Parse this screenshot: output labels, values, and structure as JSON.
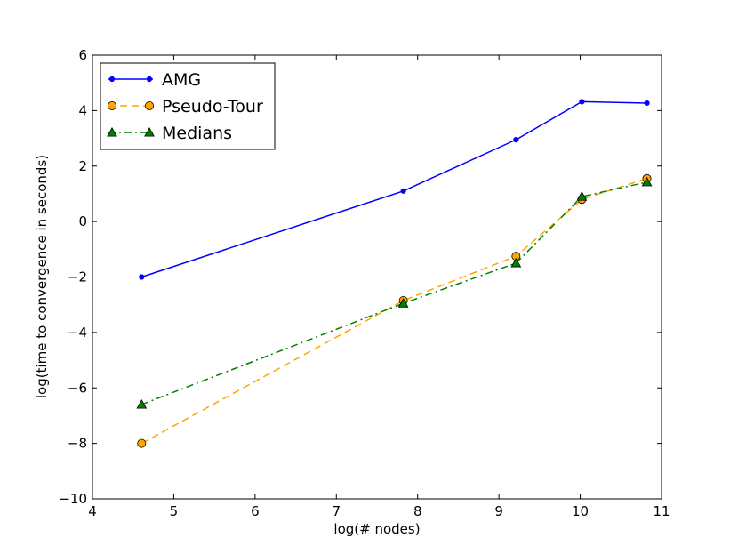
{
  "chart_data": {
    "type": "line",
    "title": "",
    "xlabel": "log(# nodes)",
    "ylabel": "log(time to convergence in seconds)",
    "xlim": [
      4,
      11
    ],
    "ylim": [
      -10,
      6
    ],
    "xticks": [
      4,
      5,
      6,
      7,
      8,
      9,
      10,
      11
    ],
    "yticks": [
      -10,
      -8,
      -6,
      -4,
      -2,
      0,
      2,
      4,
      6
    ],
    "xtick_labels": [
      "4",
      "5",
      "6",
      "7",
      "8",
      "9",
      "10",
      "11"
    ],
    "ytick_labels": [
      "−10",
      "−8",
      "−6",
      "−4",
      "−2",
      "0",
      "2",
      "4",
      "6"
    ],
    "grid": false,
    "legend_position": "top-left",
    "x": [
      4.605,
      7.824,
      9.21,
      10.02,
      10.82
    ],
    "series": [
      {
        "name": "AMG",
        "color": "#0000ff",
        "linestyle": "solid",
        "marker": "dot",
        "values": [
          -2.0,
          1.1,
          2.95,
          4.32,
          4.27
        ]
      },
      {
        "name": "Pseudo-Tour",
        "color": "#ffa500",
        "linestyle": "dashed",
        "marker": "circle",
        "values": [
          -8.0,
          -2.85,
          -1.25,
          0.8,
          1.55
        ]
      },
      {
        "name": "Medians",
        "color": "#008000",
        "linestyle": "dashdot",
        "marker": "triangle",
        "values": [
          -6.6,
          -2.95,
          -1.5,
          0.9,
          1.42
        ]
      }
    ]
  }
}
